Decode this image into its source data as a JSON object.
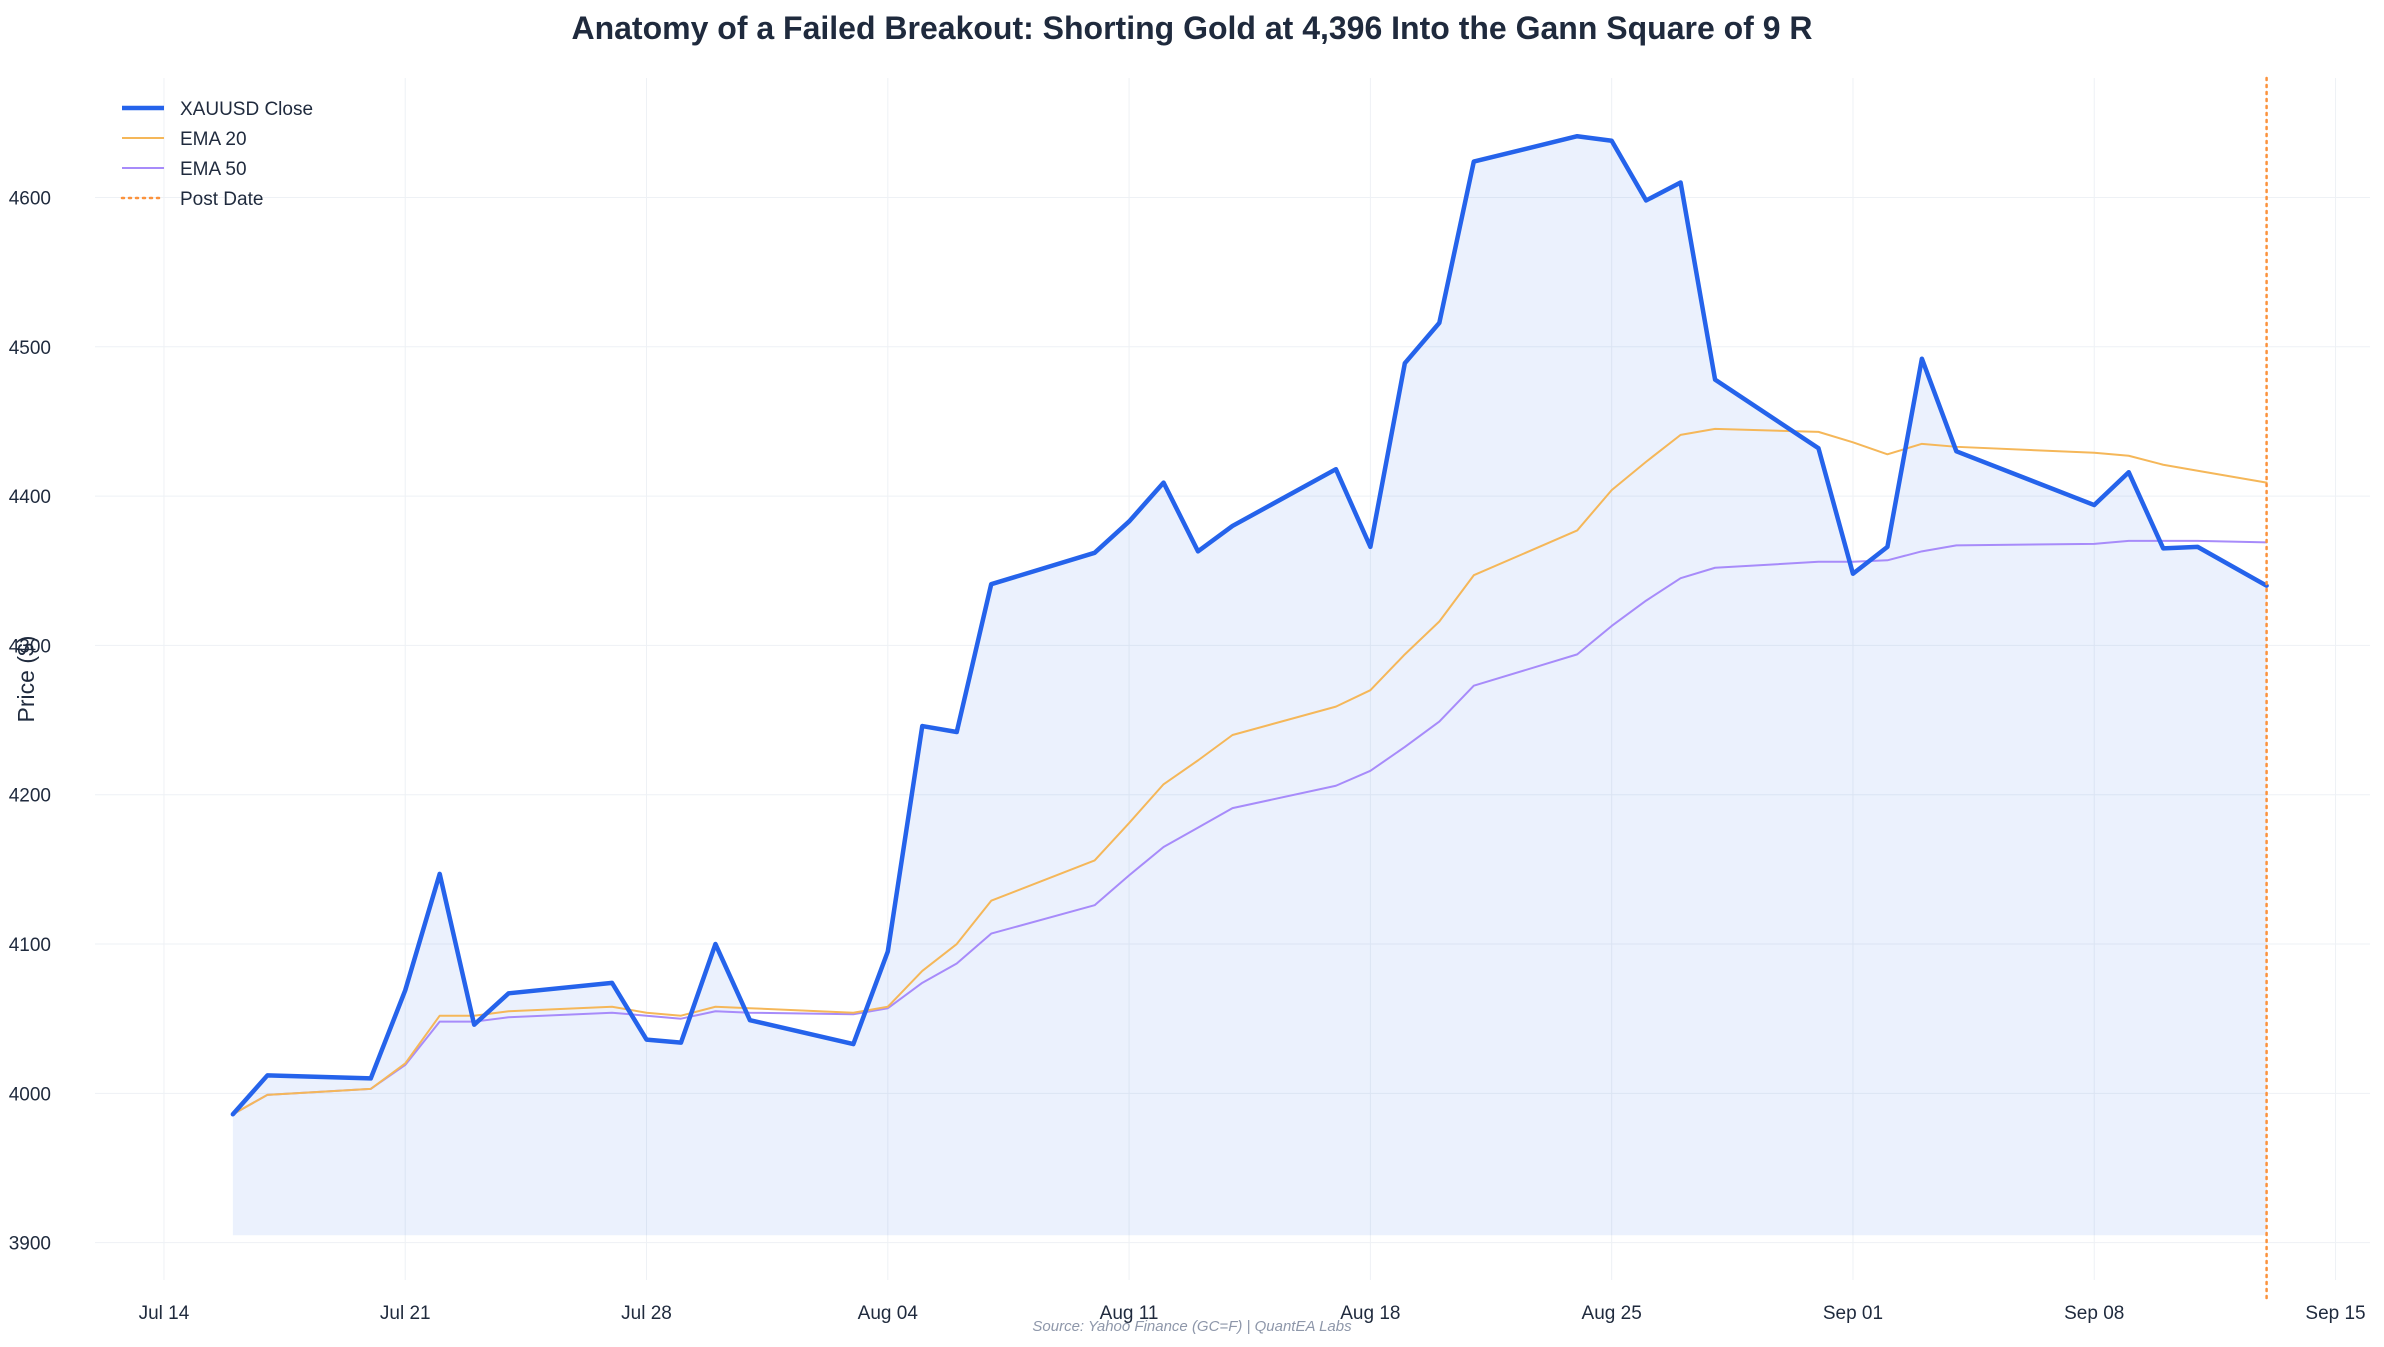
{
  "chart_data": {
    "type": "line",
    "title": "Anatomy of a Failed Breakout: Shorting Gold at 4,396 Into the Gann Square of 9 R",
    "xlabel": "",
    "ylabel": "Price ($)",
    "source": "Source: Yahoo Finance (GC=F) | QuantEA Labs",
    "ylim": [
      3875,
      4680
    ],
    "xlim": [
      "2025-07-12",
      "2025-09-16"
    ],
    "yticks": [
      3900,
      4000,
      4100,
      4200,
      4300,
      4400,
      4500,
      4600
    ],
    "xticks": [
      {
        "date": "2025-07-14",
        "label": "Jul 14"
      },
      {
        "date": "2025-07-21",
        "label": "Jul 21"
      },
      {
        "date": "2025-07-28",
        "label": "Jul 28"
      },
      {
        "date": "2025-08-04",
        "label": "Aug 04"
      },
      {
        "date": "2025-08-11",
        "label": "Aug 11"
      },
      {
        "date": "2025-08-18",
        "label": "Aug 18"
      },
      {
        "date": "2025-08-25",
        "label": "Aug 25"
      },
      {
        "date": "2025-09-01",
        "label": "Sep 01"
      },
      {
        "date": "2025-09-08",
        "label": "Sep 08"
      },
      {
        "date": "2025-09-15",
        "label": "Sep 15"
      }
    ],
    "grid": true,
    "legend_position": "top-left",
    "fill_baseline": 3905,
    "post_date": "2025-09-13",
    "x": [
      "2025-07-16",
      "2025-07-17",
      "2025-07-20",
      "2025-07-21",
      "2025-07-22",
      "2025-07-23",
      "2025-07-24",
      "2025-07-27",
      "2025-07-28",
      "2025-07-29",
      "2025-07-30",
      "2025-07-31",
      "2025-08-03",
      "2025-08-04",
      "2025-08-05",
      "2025-08-06",
      "2025-08-07",
      "2025-08-10",
      "2025-08-11",
      "2025-08-12",
      "2025-08-13",
      "2025-08-14",
      "2025-08-17",
      "2025-08-18",
      "2025-08-19",
      "2025-08-20",
      "2025-08-21",
      "2025-08-24",
      "2025-08-25",
      "2025-08-26",
      "2025-08-27",
      "2025-08-28",
      "2025-08-31",
      "2025-09-01",
      "2025-09-02",
      "2025-09-03",
      "2025-09-04",
      "2025-09-08",
      "2025-09-09",
      "2025-09-10",
      "2025-09-11",
      "2025-09-13"
    ],
    "series": [
      {
        "name": "XAUUSD Close",
        "color": "#2563eb",
        "style": "solid-thick",
        "values": [
          3986,
          4012,
          4010,
          4069,
          4147,
          4046,
          4067,
          4074,
          4036,
          4034,
          4100,
          4049,
          4033,
          4095,
          4246,
          4242,
          4341,
          4362,
          4383,
          4409,
          4363,
          4380,
          4418,
          4366,
          4489,
          4516,
          4624,
          4641,
          4638,
          4598,
          4610,
          4478,
          4432,
          4348,
          4366,
          4492,
          4430,
          4394,
          4416,
          4365,
          4366,
          4340
        ]
      },
      {
        "name": "EMA 20",
        "color": "#f5b759",
        "style": "solid-thin",
        "values": [
          3986,
          3999,
          4003,
          4020,
          4052,
          4052,
          4055,
          4058,
          4054,
          4052,
          4058,
          4057,
          4054,
          4058,
          4082,
          4100,
          4129,
          4156,
          4181,
          4207,
          4223,
          4240,
          4259,
          4270,
          4294,
          4316,
          4347,
          4377,
          4404,
          4423,
          4441,
          4445,
          4443,
          4436,
          4428,
          4435,
          4433,
          4429,
          4427,
          4421,
          4417,
          4409
        ]
      },
      {
        "name": "EMA 50",
        "color": "#a78bfa",
        "style": "solid-thin",
        "values": [
          3986,
          3999,
          4003,
          4019,
          4048,
          4048,
          4051,
          4054,
          4052,
          4050,
          4055,
          4054,
          4053,
          4057,
          4074,
          4087,
          4107,
          4126,
          4146,
          4165,
          4178,
          4191,
          4206,
          4216,
          4232,
          4249,
          4273,
          4294,
          4313,
          4330,
          4345,
          4352,
          4356,
          4356,
          4357,
          4363,
          4367,
          4368,
          4370,
          4370,
          4370,
          4369
        ]
      }
    ],
    "legend": [
      {
        "label": "XAUUSD Close",
        "color": "#2563eb",
        "style": "thick"
      },
      {
        "label": "EMA 20",
        "color": "#f5b759",
        "style": "thin"
      },
      {
        "label": "EMA 50",
        "color": "#a78bfa",
        "style": "thin"
      },
      {
        "label": "Post Date",
        "color": "#fb923c",
        "style": "dotted"
      }
    ]
  }
}
